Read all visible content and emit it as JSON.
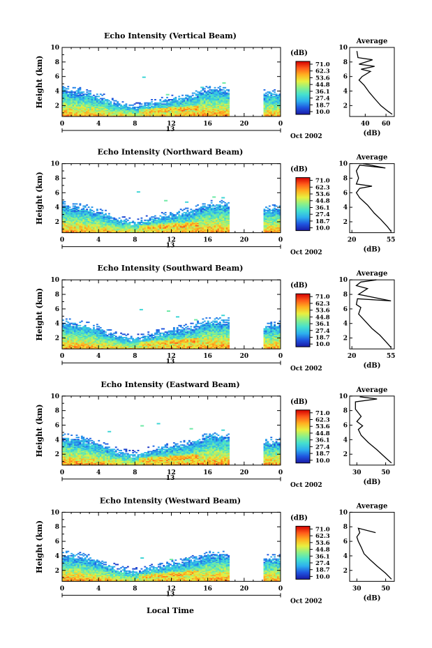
{
  "figure": {
    "bottom_label": "Local Time",
    "colorbar_unit": "(dB)",
    "colorbar_ticks": [
      "71.0",
      "62.3",
      "53.6",
      "44.8",
      "36.1",
      "27.4",
      "18.7",
      "10.0"
    ],
    "colors": {
      "ramp": [
        "#1a1aa6",
        "#1f55e0",
        "#2db0ee",
        "#44e0d0",
        "#8af08a",
        "#e8f040",
        "#ffb020",
        "#ff5a1a",
        "#d40000"
      ],
      "axis": "#000000"
    }
  },
  "chart_data": [
    {
      "type": "heatmap",
      "title": "Echo Intensity (Vertical Beam)",
      "ylabel": "Height (km)",
      "xlabel": "Local Time",
      "x_ticks": [
        "0",
        "4",
        "8",
        "12",
        "16",
        "20",
        "0"
      ],
      "y_ticks": [
        "2",
        "4",
        "6",
        "8",
        "10"
      ],
      "date_label": "13",
      "date_suffix": "Oct 2002",
      "xlim": [
        0,
        24
      ],
      "ylim": [
        0.5,
        10
      ],
      "echo_top_km": [
        [
          0,
          4.2
        ],
        [
          2,
          3.9
        ],
        [
          4,
          3.3
        ],
        [
          6,
          2.3
        ],
        [
          8,
          1.8
        ],
        [
          10,
          2.4
        ],
        [
          12,
          2.9
        ],
        [
          14,
          3.3
        ],
        [
          16,
          4.2
        ],
        [
          18.3,
          4.2
        ],
        [
          22.2,
          3.6
        ],
        [
          24,
          3.7
        ]
      ],
      "data_gap_hours": [
        18.3,
        22.2
      ],
      "scattered_echoes": [
        [
          8.8,
          6.0
        ],
        [
          11.4,
          3.6
        ],
        [
          15.2,
          4.6
        ],
        [
          17.6,
          5.2
        ]
      ],
      "average_profile": {
        "title": "Average",
        "xlabel": "(dB)",
        "x_ticks": [
          "40",
          "60"
        ],
        "xlim": [
          25,
          68
        ],
        "y_ticks": [
          "2",
          "4",
          "6",
          "8",
          "10"
        ],
        "points": [
          [
            66,
            0.8
          ],
          [
            62,
            1.2
          ],
          [
            55,
            2.0
          ],
          [
            50,
            2.8
          ],
          [
            44,
            3.8
          ],
          [
            39,
            4.8
          ],
          [
            34,
            5.5
          ],
          [
            37,
            6.0
          ],
          [
            45,
            6.7
          ],
          [
            36,
            7.0
          ],
          [
            49,
            7.4
          ],
          [
            34,
            7.7
          ],
          [
            47,
            8.3
          ],
          [
            33,
            8.6
          ],
          [
            32,
            9.5
          ]
        ]
      }
    },
    {
      "type": "heatmap",
      "title": "Echo Intensity (Northward Beam)",
      "ylabel": "Height (km)",
      "xlabel": "Local Time",
      "x_ticks": [
        "0",
        "4",
        "8",
        "12",
        "16",
        "20",
        "0"
      ],
      "y_ticks": [
        "2",
        "4",
        "6",
        "8",
        "10"
      ],
      "date_label": "13",
      "date_suffix": "Oct 2002",
      "xlim": [
        0,
        24
      ],
      "ylim": [
        0.5,
        10
      ],
      "echo_top_km": [
        [
          0,
          4.3
        ],
        [
          2,
          4.0
        ],
        [
          4,
          3.4
        ],
        [
          6,
          2.4
        ],
        [
          8,
          1.9
        ],
        [
          10,
          2.5
        ],
        [
          12,
          3.0
        ],
        [
          14,
          3.4
        ],
        [
          16,
          4.4
        ],
        [
          18.3,
          4.4
        ],
        [
          22.2,
          3.7
        ],
        [
          24,
          3.9
        ]
      ],
      "data_gap_hours": [
        18.3,
        22.2
      ],
      "scattered_echoes": [
        [
          8.2,
          6.2
        ],
        [
          11.2,
          5.0
        ],
        [
          13.5,
          4.8
        ],
        [
          16.5,
          5.5
        ],
        [
          17.5,
          5.4
        ]
      ],
      "average_profile": {
        "title": "Average",
        "xlabel": "(dB)",
        "x_ticks": [
          "20",
          "55"
        ],
        "xlim": [
          18,
          58
        ],
        "y_ticks": [
          "2",
          "4",
          "6",
          "8",
          "10"
        ],
        "points": [
          [
            55,
            0.7
          ],
          [
            52,
            1.3
          ],
          [
            46,
            2.3
          ],
          [
            40,
            3.2
          ],
          [
            34,
            4.3
          ],
          [
            27,
            5.3
          ],
          [
            24,
            6.0
          ],
          [
            27,
            6.6
          ],
          [
            38,
            6.9
          ],
          [
            24,
            7.2
          ],
          [
            26,
            8.0
          ],
          [
            24,
            9.0
          ],
          [
            27,
            9.8
          ],
          [
            50,
            9.4
          ],
          [
            30,
            10.0
          ]
        ]
      }
    },
    {
      "type": "heatmap",
      "title": "Echo Intensity (Southward Beam)",
      "ylabel": "Height (km)",
      "xlabel": "Local Time",
      "x_ticks": [
        "0",
        "4",
        "8",
        "12",
        "16",
        "20",
        "0"
      ],
      "y_ticks": [
        "2",
        "4",
        "6",
        "8",
        "10"
      ],
      "date_label": "13",
      "date_suffix": "Oct 2002",
      "xlim": [
        0,
        24
      ],
      "ylim": [
        0.5,
        10
      ],
      "echo_top_km": [
        [
          0,
          4.2
        ],
        [
          2,
          3.9
        ],
        [
          4,
          3.3
        ],
        [
          6,
          2.3
        ],
        [
          8,
          1.9
        ],
        [
          10,
          2.5
        ],
        [
          12,
          3.0
        ],
        [
          14,
          3.4
        ],
        [
          16,
          4.3
        ],
        [
          18.3,
          4.3
        ],
        [
          22.2,
          3.6
        ],
        [
          24,
          3.8
        ]
      ],
      "data_gap_hours": [
        18.3,
        22.2
      ],
      "scattered_echoes": [
        [
          8.5,
          6.0
        ],
        [
          11.5,
          5.8
        ],
        [
          12.5,
          5.0
        ],
        [
          14.5,
          4.6
        ],
        [
          17.5,
          5.2
        ]
      ],
      "average_profile": {
        "title": "Average",
        "xlabel": "(dB)",
        "x_ticks": [
          "20",
          "55"
        ],
        "xlim": [
          18,
          58
        ],
        "y_ticks": [
          "2",
          "4",
          "6",
          "8",
          "10"
        ],
        "points": [
          [
            55,
            0.7
          ],
          [
            51,
            1.4
          ],
          [
            45,
            2.4
          ],
          [
            38,
            3.3
          ],
          [
            32,
            4.3
          ],
          [
            26,
            5.3
          ],
          [
            28,
            6.2
          ],
          [
            24,
            6.6
          ],
          [
            25,
            7.4
          ],
          [
            55,
            7.1
          ],
          [
            26,
            8.0
          ],
          [
            34,
            8.8
          ],
          [
            24,
            9.2
          ],
          [
            28,
            9.7
          ],
          [
            42,
            10.0
          ]
        ]
      }
    },
    {
      "type": "heatmap",
      "title": "Echo Intensity (Eastward Beam)",
      "ylabel": "Height (km)",
      "xlabel": "Local Time",
      "x_ticks": [
        "0",
        "4",
        "8",
        "12",
        "16",
        "20",
        "0"
      ],
      "y_ticks": [
        "2",
        "4",
        "6",
        "8",
        "10"
      ],
      "date_label": "13",
      "date_suffix": "Oct 2002",
      "xlim": [
        0,
        24
      ],
      "ylim": [
        0.5,
        10
      ],
      "echo_top_km": [
        [
          0,
          4.3
        ],
        [
          2,
          4.0
        ],
        [
          4,
          3.4
        ],
        [
          6,
          2.4
        ],
        [
          8,
          1.9
        ],
        [
          10,
          2.6
        ],
        [
          12,
          3.1
        ],
        [
          14,
          3.5
        ],
        [
          16,
          4.5
        ],
        [
          18.3,
          4.4
        ],
        [
          22.2,
          3.7
        ],
        [
          24,
          3.9
        ]
      ],
      "data_gap_hours": [
        18.3,
        22.2
      ],
      "scattered_echoes": [
        [
          5.0,
          5.2
        ],
        [
          8.6,
          6.0
        ],
        [
          10.4,
          6.3
        ],
        [
          14.0,
          5.6
        ],
        [
          17.5,
          5.4
        ]
      ],
      "average_profile": {
        "title": "Average",
        "xlabel": "(dB)",
        "x_ticks": [
          "30",
          "50"
        ],
        "xlim": [
          25,
          56
        ],
        "y_ticks": [
          "2",
          "4",
          "6",
          "8",
          "10"
        ],
        "points": [
          [
            54,
            0.8
          ],
          [
            50,
            1.5
          ],
          [
            44,
            2.6
          ],
          [
            38,
            3.6
          ],
          [
            33,
            4.6
          ],
          [
            31,
            5.4
          ],
          [
            34,
            5.9
          ],
          [
            30,
            6.5
          ],
          [
            33,
            7.2
          ],
          [
            29,
            8.2
          ],
          [
            29,
            9.2
          ],
          [
            44,
            9.6
          ],
          [
            32,
            9.9
          ]
        ]
      }
    },
    {
      "type": "heatmap",
      "title": "Echo Intensity (Westward Beam)",
      "ylabel": "Height (km)",
      "xlabel": "Local Time",
      "x_ticks": [
        "0",
        "4",
        "8",
        "12",
        "16",
        "20",
        "0"
      ],
      "y_ticks": [
        "2",
        "4",
        "6",
        "8",
        "10"
      ],
      "date_label": "13",
      "date_suffix": "Oct 2002",
      "xlim": [
        0,
        24
      ],
      "ylim": [
        0.5,
        10
      ],
      "echo_top_km": [
        [
          0,
          4.2
        ],
        [
          2,
          3.9
        ],
        [
          4,
          3.3
        ],
        [
          6,
          2.3
        ],
        [
          8,
          1.8
        ],
        [
          10,
          2.4
        ],
        [
          12,
          2.9
        ],
        [
          14,
          3.3
        ],
        [
          16,
          4.2
        ],
        [
          18.3,
          4.2
        ],
        [
          22.2,
          3.6
        ],
        [
          24,
          3.7
        ]
      ],
      "data_gap_hours": [
        18.3,
        22.2
      ],
      "scattered_echoes": [
        [
          8.6,
          3.8
        ],
        [
          11.8,
          3.6
        ],
        [
          13.6,
          3.7
        ]
      ],
      "average_profile": {
        "title": "Average",
        "xlabel": "(dB)",
        "x_ticks": [
          "30",
          "50"
        ],
        "xlim": [
          25,
          56
        ],
        "y_ticks": [
          "2",
          "4",
          "6",
          "8",
          "10"
        ],
        "points": [
          [
            54,
            0.8
          ],
          [
            50,
            1.6
          ],
          [
            44,
            2.6
          ],
          [
            39,
            3.5
          ],
          [
            35,
            4.3
          ],
          [
            33,
            5.2
          ],
          [
            31,
            6.0
          ],
          [
            30,
            6.6
          ],
          [
            32,
            7.2
          ],
          [
            31,
            7.8
          ],
          [
            43,
            7.2
          ]
        ]
      }
    }
  ]
}
